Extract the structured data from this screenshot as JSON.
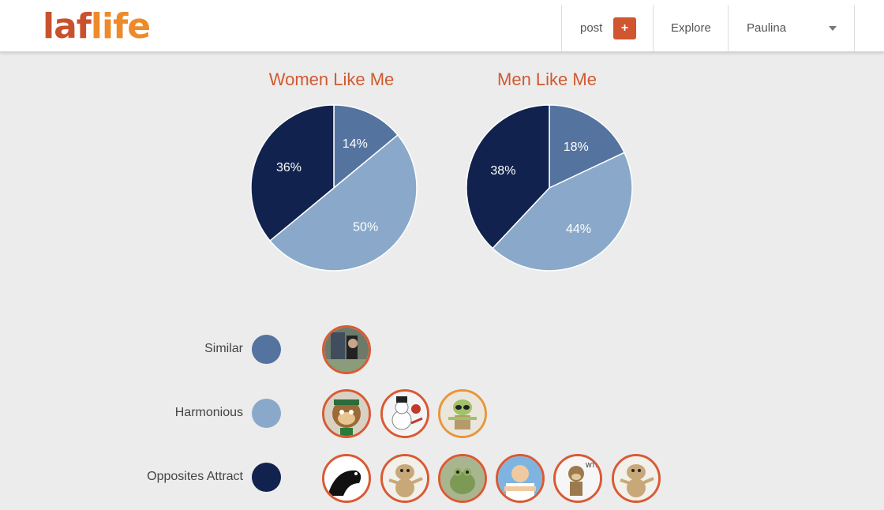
{
  "header": {
    "logo_part1": "laf",
    "logo_part2": "life",
    "post_label": "post",
    "add_label": "+",
    "explore_label": "Explore",
    "user_name": "Paulina"
  },
  "colors": {
    "similar": "#55739f",
    "harmonious": "#8aa9ca",
    "opposites": "#12224e",
    "accent": "#d1552e",
    "title": "#cf5a30"
  },
  "chart_data": [
    {
      "type": "pie",
      "title": "Women Like Me",
      "categories": [
        "Similar",
        "Harmonious",
        "Opposites Attract"
      ],
      "values": [
        14,
        50,
        36
      ],
      "labels": [
        "14%",
        "50%",
        "36%"
      ]
    },
    {
      "type": "pie",
      "title": "Men Like Me",
      "categories": [
        "Similar",
        "Harmonious",
        "Opposites Attract"
      ],
      "values": [
        18,
        44,
        38
      ],
      "labels": [
        "18%",
        "44%",
        "38%"
      ]
    }
  ],
  "legend": [
    {
      "label": "Similar"
    },
    {
      "label": "Harmonious"
    },
    {
      "label": "Opposites Attract"
    }
  ],
  "avatars": {
    "similar": [
      "photo-avatar"
    ],
    "harmonious": [
      "bear-avatar",
      "snowman-avatar",
      "alien-avatar"
    ],
    "opposites": [
      "silhouette-avatar",
      "dog-avatar",
      "frog-avatar",
      "mr-clean-avatar",
      "monkey-avatar",
      "dog-avatar"
    ]
  }
}
